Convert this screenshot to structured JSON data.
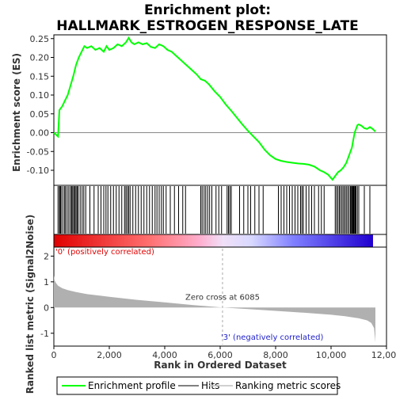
{
  "chart_data": {
    "type": "line",
    "title_line1": "Enrichment plot:",
    "title_line2": "HALLMARK_ESTROGEN_RESPONSE_LATE",
    "es_panel": {
      "ylabel": "Enrichment score (ES)",
      "ylim": [
        -0.14,
        0.26
      ],
      "yticks": [
        -0.1,
        -0.05,
        0.0,
        0.05,
        0.1,
        0.15,
        0.2,
        0.25
      ],
      "ytick_labels": [
        "-0.10",
        "-0.05",
        "0.00",
        "0.05",
        "0.10",
        "0.15",
        "0.20",
        "0.25"
      ],
      "series": [
        {
          "name": "Enrichment profile",
          "color": "#00ff00",
          "x": [
            0,
            150,
            200,
            300,
            400,
            500,
            600,
            700,
            800,
            900,
            1000,
            1100,
            1200,
            1350,
            1500,
            1650,
            1800,
            1900,
            2000,
            2150,
            2300,
            2450,
            2600,
            2700,
            2800,
            2900,
            3050,
            3200,
            3350,
            3500,
            3650,
            3800,
            3950,
            4100,
            4250,
            4400,
            4550,
            4700,
            4850,
            5000,
            5150,
            5300,
            5450,
            5600,
            5800,
            6000,
            6200,
            6400,
            6600,
            6800,
            7000,
            7200,
            7400,
            7600,
            7800,
            8000,
            8200,
            8400,
            8600,
            8800,
            9000,
            9200,
            9400,
            9600,
            9750,
            9900,
            10050,
            10150,
            10250,
            10350,
            10450,
            10550,
            10650,
            10750,
            10800,
            10850,
            10900,
            10950,
            11000,
            11100,
            11200,
            11300,
            11400,
            11500,
            11600
          ],
          "y": [
            0.0,
            -0.01,
            0.06,
            0.07,
            0.085,
            0.1,
            0.125,
            0.15,
            0.18,
            0.2,
            0.215,
            0.23,
            0.225,
            0.23,
            0.22,
            0.225,
            0.215,
            0.23,
            0.22,
            0.225,
            0.235,
            0.23,
            0.24,
            0.252,
            0.24,
            0.235,
            0.24,
            0.235,
            0.238,
            0.228,
            0.225,
            0.235,
            0.23,
            0.22,
            0.215,
            0.205,
            0.195,
            0.185,
            0.175,
            0.165,
            0.155,
            0.142,
            0.138,
            0.128,
            0.11,
            0.095,
            0.075,
            0.058,
            0.04,
            0.022,
            0.005,
            -0.01,
            -0.025,
            -0.045,
            -0.06,
            -0.07,
            -0.075,
            -0.078,
            -0.08,
            -0.082,
            -0.083,
            -0.085,
            -0.09,
            -0.1,
            -0.105,
            -0.112,
            -0.125,
            -0.115,
            -0.105,
            -0.1,
            -0.092,
            -0.08,
            -0.06,
            -0.04,
            -0.02,
            0.0,
            0.01,
            0.02,
            0.022,
            0.018,
            0.012,
            0.01,
            0.015,
            0.01,
            0.003
          ]
        }
      ]
    },
    "hits": {
      "name": "Hits",
      "x": [
        150,
        200,
        230,
        260,
        320,
        380,
        420,
        480,
        540,
        600,
        640,
        680,
        720,
        760,
        800,
        840,
        880,
        950,
        1020,
        1080,
        1150,
        1300,
        1450,
        1600,
        1700,
        1800,
        1880,
        1950,
        2050,
        2150,
        2250,
        2350,
        2450,
        2550,
        2600,
        2650,
        2700,
        2750,
        2850,
        2950,
        3050,
        3150,
        3250,
        3350,
        3450,
        3550,
        3650,
        3720,
        3800,
        3880,
        3950,
        4050,
        4200,
        4350,
        4500,
        4650,
        4750,
        5300,
        5350,
        5420,
        5480,
        5550,
        5620,
        5700,
        5850,
        5950,
        6050,
        6250,
        6300,
        6350,
        6400,
        6700,
        6850,
        7000,
        7100,
        7250,
        7400,
        7550,
        8100,
        8200,
        8300,
        8400,
        8500,
        8600,
        8700,
        8800,
        8900,
        8950,
        9000,
        9100,
        9200,
        9300,
        9400,
        9550,
        9650,
        9750,
        10150,
        10200,
        10250,
        10300,
        10350,
        10400,
        10450,
        10500,
        10550,
        10600,
        10650,
        10700,
        10720,
        10750,
        10780,
        10800,
        10820,
        10850,
        10870,
        10900,
        10950,
        11000,
        11200,
        11400
      ]
    },
    "metric_panel": {
      "ylabel": "Ranked list metric (Signal2Noise)",
      "ylim": [
        -1.5,
        2.35
      ],
      "yticks": [
        -1,
        0,
        1,
        2
      ],
      "ytick_labels": [
        "-1",
        "0",
        "1",
        "2"
      ],
      "series": [
        {
          "name": "Ranking metric scores",
          "color": "#b0b0b0",
          "x": [
            0,
            30,
            80,
            150,
            300,
            500,
            800,
            1200,
            2000,
            3000,
            4000,
            5000,
            6085,
            7000,
            8000,
            9000,
            10000,
            10500,
            11000,
            11300,
            11450,
            11550,
            11600
          ],
          "y": [
            1.25,
            1.05,
            0.95,
            0.85,
            0.75,
            0.68,
            0.6,
            0.52,
            0.42,
            0.3,
            0.2,
            0.1,
            0.0,
            -0.06,
            -0.13,
            -0.2,
            -0.28,
            -0.34,
            -0.42,
            -0.5,
            -0.6,
            -0.8,
            -1.35
          ]
        }
      ],
      "zero_cross_label": "Zero cross at 6085",
      "zero_cross_x": 6085,
      "pos_label": "'0' (positively correlated)",
      "neg_label": "'3' (negatively correlated)"
    },
    "xaxis": {
      "label": "Rank in Ordered Dataset",
      "xlim": [
        0,
        12000
      ],
      "ticks": [
        0,
        2000,
        4000,
        6000,
        8000,
        10000,
        12000
      ],
      "tick_labels": [
        "0",
        "2,000",
        "4,000",
        "6,000",
        "8,000",
        "10,000",
        "12,000"
      ]
    },
    "legend": {
      "items": [
        {
          "label": "Enrichment profile",
          "color": "#00ff00"
        },
        {
          "label": "Hits",
          "color": "#000000"
        },
        {
          "label": "Ranking metric scores",
          "color": "#c0c0c0"
        }
      ]
    },
    "gradient_colors": [
      "#e00000",
      "#ff9a9a",
      "#ffc0e0",
      "#d8d8ff",
      "#8080ff",
      "#2000d0"
    ]
  }
}
